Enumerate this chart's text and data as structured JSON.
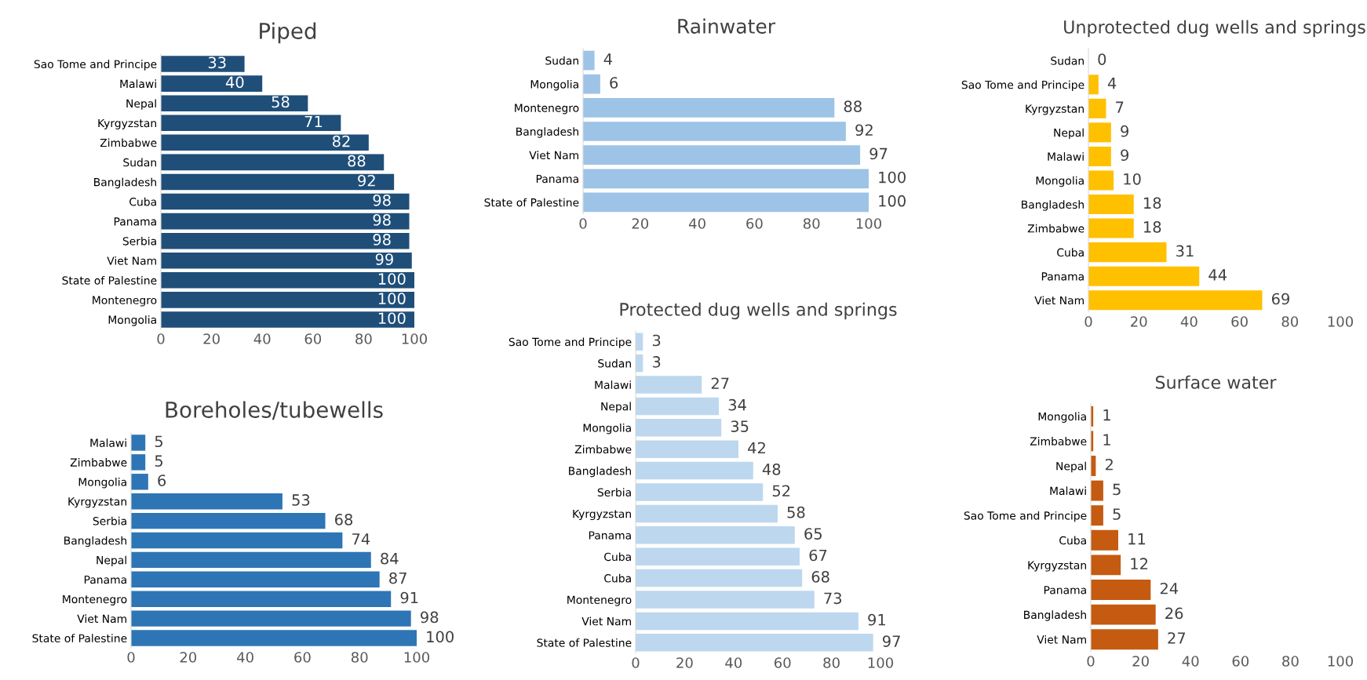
{
  "chart_data": [
    {
      "type": "bar",
      "orientation": "horizontal",
      "title": "Piped",
      "categories": [
        "Sao Tome and Principe",
        "Malawi",
        "Nepal",
        "Kyrgyzstan",
        "Zimbabwe",
        "Sudan",
        "Bangladesh",
        "Cuba",
        "Panama",
        "Serbia",
        "Viet Nam",
        "State of Palestine",
        "Montenegro",
        "Mongolia"
      ],
      "values": [
        33,
        40,
        58,
        71,
        82,
        88,
        92,
        98,
        98,
        98,
        99,
        100,
        100,
        100
      ],
      "color": "#1f4e79",
      "xlim": [
        0,
        100
      ],
      "xticks": [
        0,
        20,
        40,
        60,
        80,
        100
      ],
      "data_labels": true,
      "grid": false,
      "legend": false
    },
    {
      "type": "bar",
      "orientation": "horizontal",
      "title": "Boreholes/tubewells",
      "categories": [
        "Malawi",
        "Zimbabwe",
        "Mongolia",
        "Kyrgyzstan",
        "Serbia",
        "Bangladesh",
        "Nepal",
        "Panama",
        "Montenegro",
        "Viet Nam",
        "State of Palestine"
      ],
      "values": [
        5,
        5,
        6,
        53,
        68,
        74,
        84,
        87,
        91,
        98,
        100
      ],
      "color": "#2e75b6",
      "xlim": [
        0,
        100
      ],
      "xticks": [
        0,
        20,
        40,
        60,
        80,
        100
      ],
      "data_labels": true,
      "grid": false,
      "legend": false
    },
    {
      "type": "bar",
      "orientation": "horizontal",
      "title": "Rainwater",
      "categories": [
        "Sudan",
        "Mongolia",
        "Montenegro",
        "Bangladesh",
        "Viet Nam",
        "Panama",
        "State of Palestine"
      ],
      "values": [
        4,
        6,
        88,
        92,
        97,
        100,
        100
      ],
      "color": "#9dc3e6",
      "xlim": [
        0,
        100
      ],
      "xticks": [
        0,
        20,
        40,
        60,
        80,
        100
      ],
      "data_labels": true,
      "grid": false,
      "legend": false
    },
    {
      "type": "bar",
      "orientation": "horizontal",
      "title": "Protected dug wells and springs",
      "categories": [
        "Sao Tome and Principe",
        "Sudan",
        "Malawi",
        "Nepal",
        "Mongolia",
        "Zimbabwe",
        "Bangladesh",
        "Serbia",
        "Kyrgyzstan",
        "Panama",
        "Cuba",
        "Cuba",
        "Montenegro",
        "Viet Nam",
        "State of Palestine"
      ],
      "values": [
        3,
        3,
        27,
        34,
        35,
        42,
        48,
        52,
        58,
        65,
        67,
        68,
        73,
        91,
        97
      ],
      "color": "#bdd7ee",
      "xlim": [
        0,
        100
      ],
      "xticks": [
        0,
        20,
        40,
        60,
        80,
        100
      ],
      "data_labels": true,
      "grid": false,
      "legend": false
    },
    {
      "type": "bar",
      "orientation": "horizontal",
      "title": "Unprotected dug wells and springs",
      "categories": [
        "Sudan",
        "Sao Tome and Principe",
        "Kyrgyzstan",
        "Nepal",
        "Malawi",
        "Mongolia",
        "Bangladesh",
        "Zimbabwe",
        "Cuba",
        "Panama",
        "Viet Nam"
      ],
      "values": [
        0,
        4,
        7,
        9,
        9,
        10,
        18,
        18,
        31,
        44,
        69
      ],
      "color": "#ffc000",
      "xlim": [
        0,
        100
      ],
      "xticks": [
        0,
        20,
        40,
        60,
        80,
        100
      ],
      "data_labels": true,
      "grid": false,
      "legend": false
    },
    {
      "type": "bar",
      "orientation": "horizontal",
      "title": "Surface water",
      "categories": [
        "Mongolia",
        "Zimbabwe",
        "Nepal",
        "Malawi",
        "Sao Tome and Principe",
        "Cuba",
        "Kyrgyzstan",
        "Panama",
        "Bangladesh",
        "Viet Nam"
      ],
      "values": [
        1,
        1,
        2,
        5,
        5,
        11,
        12,
        24,
        26,
        27
      ],
      "color": "#c55a11",
      "xlim": [
        0,
        100
      ],
      "xticks": [
        0,
        20,
        40,
        60,
        80,
        100
      ],
      "data_labels": true,
      "grid": false,
      "legend": false
    }
  ]
}
